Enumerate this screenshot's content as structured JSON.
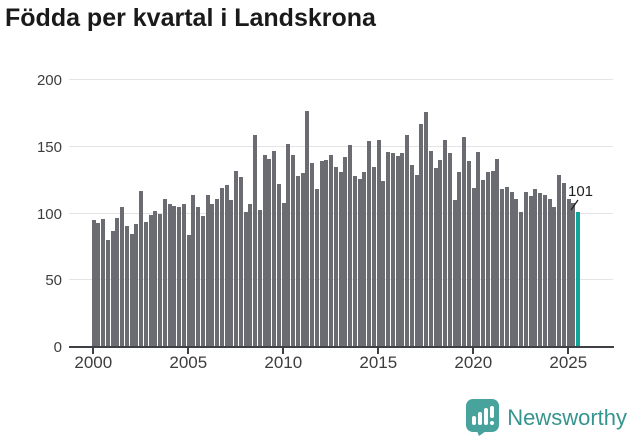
{
  "title": "Födda per kvartal i Landskrona",
  "annotation": {
    "label": "101"
  },
  "branding": {
    "wordmark": "Newsworthy"
  },
  "colors": {
    "bar": "#6b6b72",
    "highlight": "#0fa49c",
    "title_text": "#1a1a1a",
    "axis_text": "#3d3d3d",
    "gridline": "#e4e4e4",
    "axis_line": "#3f4045",
    "logo_badge": "#47a39c",
    "logo_text": "#35958e",
    "annotation_text": "#1f1f1f"
  },
  "chart_data": {
    "type": "bar",
    "title": "Födda per kvartal i Landskrona",
    "xlabel": "",
    "ylabel": "",
    "ylim": [
      0,
      200
    ],
    "grid": true,
    "y_tick_labels": [
      "0",
      "50",
      "100",
      "150",
      "200"
    ],
    "y_tick_values": [
      0,
      50,
      100,
      150,
      200
    ],
    "x_tick_labels": [
      "2000",
      "2005",
      "2010",
      "2015",
      "2020",
      "2025"
    ],
    "x_tick_years": [
      2000,
      2005,
      2010,
      2015,
      2020,
      2025
    ],
    "highlight_last_bar": true,
    "last_value_label": "101",
    "categories": [
      "2000 Q1",
      "2000 Q2",
      "2000 Q3",
      "2000 Q4",
      "2001 Q1",
      "2001 Q2",
      "2001 Q3",
      "2001 Q4",
      "2002 Q1",
      "2002 Q2",
      "2002 Q3",
      "2002 Q4",
      "2003 Q1",
      "2003 Q2",
      "2003 Q3",
      "2003 Q4",
      "2004 Q1",
      "2004 Q2",
      "2004 Q3",
      "2004 Q4",
      "2005 Q1",
      "2005 Q2",
      "2005 Q3",
      "2005 Q4",
      "2006 Q1",
      "2006 Q2",
      "2006 Q3",
      "2006 Q4",
      "2007 Q1",
      "2007 Q2",
      "2007 Q3",
      "2007 Q4",
      "2008 Q1",
      "2008 Q2",
      "2008 Q3",
      "2008 Q4",
      "2009 Q1",
      "2009 Q2",
      "2009 Q3",
      "2009 Q4",
      "2010 Q1",
      "2010 Q2",
      "2010 Q3",
      "2010 Q4",
      "2011 Q1",
      "2011 Q2",
      "2011 Q3",
      "2011 Q4",
      "2012 Q1",
      "2012 Q2",
      "2012 Q3",
      "2012 Q4",
      "2013 Q1",
      "2013 Q2",
      "2013 Q3",
      "2013 Q4",
      "2014 Q1",
      "2014 Q2",
      "2014 Q3",
      "2014 Q4",
      "2015 Q1",
      "2015 Q2",
      "2015 Q3",
      "2015 Q4",
      "2016 Q1",
      "2016 Q2",
      "2016 Q3",
      "2016 Q4",
      "2017 Q1",
      "2017 Q2",
      "2017 Q3",
      "2017 Q4",
      "2018 Q1",
      "2018 Q2",
      "2018 Q3",
      "2018 Q4",
      "2019 Q1",
      "2019 Q2",
      "2019 Q3",
      "2019 Q4",
      "2020 Q1",
      "2020 Q2",
      "2020 Q3",
      "2020 Q4",
      "2021 Q1",
      "2021 Q2",
      "2021 Q3",
      "2021 Q4",
      "2022 Q1",
      "2022 Q2",
      "2022 Q3",
      "2022 Q4",
      "2023 Q1",
      "2023 Q2",
      "2023 Q3",
      "2023 Q4",
      "2024 Q1",
      "2024 Q2",
      "2024 Q3",
      "2024 Q4",
      "2025 Q1",
      "2025 Q2",
      "2025 Q3"
    ],
    "values": [
      95,
      93,
      96,
      80,
      87,
      97,
      105,
      91,
      85,
      92,
      117,
      94,
      99,
      102,
      100,
      111,
      107,
      106,
      105,
      107,
      84,
      114,
      105,
      98,
      114,
      107,
      111,
      119,
      121,
      110,
      132,
      127,
      101,
      107,
      159,
      103,
      144,
      141,
      147,
      122,
      108,
      152,
      144,
      128,
      130,
      177,
      138,
      118,
      139,
      140,
      144,
      135,
      131,
      142,
      151,
      128,
      126,
      131,
      154,
      135,
      155,
      124,
      146,
      145,
      143,
      145,
      159,
      136,
      129,
      167,
      176,
      147,
      134,
      140,
      155,
      145,
      110,
      131,
      157,
      139,
      119,
      146,
      125,
      131,
      132,
      141,
      118,
      120,
      116,
      111,
      101,
      116,
      113,
      118,
      115,
      114,
      111,
      105,
      129,
      123,
      111,
      108,
      101
    ]
  }
}
